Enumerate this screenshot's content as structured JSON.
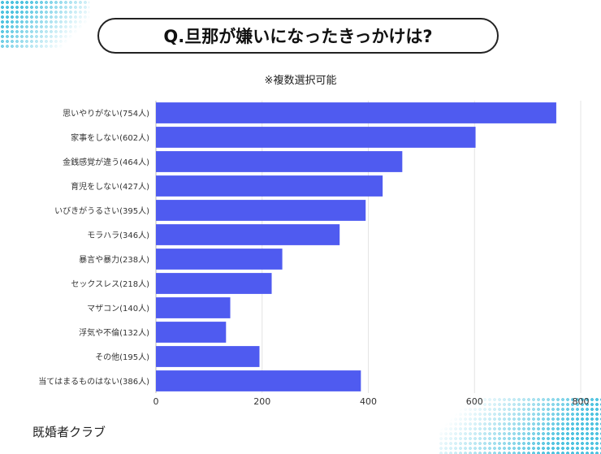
{
  "title": "Q.旦那が嫌いになったきっかけは?",
  "note": "※複数選択可能",
  "footer": "既婚者クラブ",
  "chart_data": {
    "type": "bar",
    "orientation": "horizontal",
    "categories": [
      "思いやりがない(754人)",
      "家事をしない(602人)",
      "金銭感覚が違う(464人)",
      "育児をしない(427人)",
      "いびきがうるさい(395人)",
      "モラハラ(346人)",
      "暴言や暴力(238人)",
      "セックスレス(218人)",
      "マザコン(140人)",
      "浮気や不倫(132人)",
      "その他(195人)",
      "当てはまるものはない(386人)"
    ],
    "values": [
      754,
      602,
      464,
      427,
      395,
      346,
      238,
      218,
      140,
      132,
      195,
      386
    ],
    "xlim": [
      0,
      800
    ],
    "xticks": [
      "0",
      "200",
      "400",
      "600",
      "800"
    ],
    "grid": true,
    "bar_color": "#4f5bf0"
  }
}
